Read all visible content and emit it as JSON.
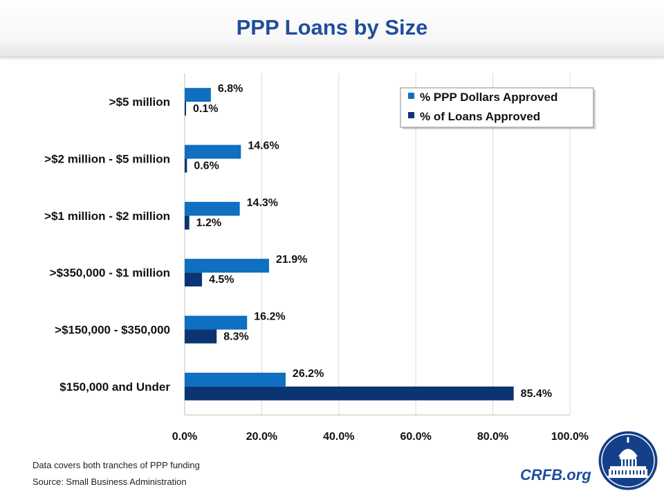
{
  "title": "PPP Loans by Size",
  "footnotes": {
    "coverage": "Data covers both tranches of PPP funding",
    "source": "Source: Small Business Administration"
  },
  "brand": "CRFB.org",
  "colors": {
    "dollars": "#0f6fc1",
    "loans": "#0a3572",
    "title": "#1f4e9c",
    "grid": "#d9d9d9"
  },
  "chart_data": {
    "type": "bar",
    "orientation": "horizontal",
    "categories": [
      ">$5 million",
      ">$2 million - $5 million",
      ">$1 million - $2 million",
      ">$350,000 - $1 million",
      ">$150,000 - $350,000",
      "$150,000 and Under"
    ],
    "series": [
      {
        "name": "% PPP Dollars Approved",
        "values": [
          6.8,
          14.6,
          14.3,
          21.9,
          16.2,
          26.2
        ],
        "labels": [
          "6.8%",
          "14.6%",
          "14.3%",
          "21.9%",
          "16.2%",
          "26.2%"
        ]
      },
      {
        "name": "% of Loans Approved",
        "values": [
          0.1,
          0.6,
          1.2,
          4.5,
          8.3,
          85.4
        ],
        "labels": [
          "0.1%",
          "0.6%",
          "1.2%",
          "4.5%",
          "8.3%",
          "85.4%"
        ]
      }
    ],
    "xlim": [
      0,
      100
    ],
    "xticks": [
      "0.0%",
      "20.0%",
      "40.0%",
      "60.0%",
      "80.0%",
      "100.0%"
    ],
    "grid": true,
    "legend_position": "top-right"
  }
}
